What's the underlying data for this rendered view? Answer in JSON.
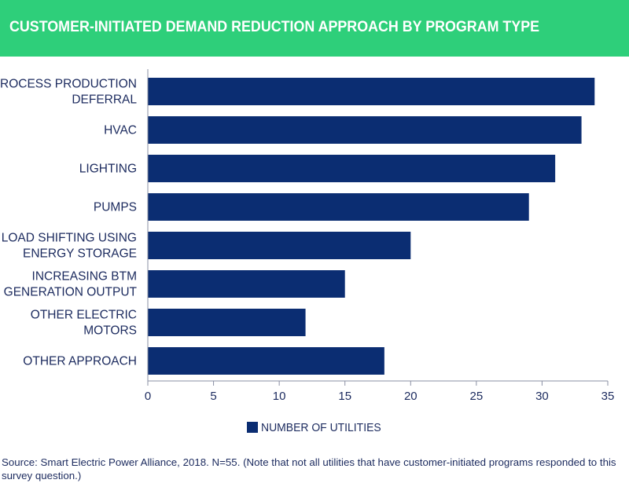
{
  "title": "CUSTOMER-INITIATED DEMAND REDUCTION APPROACH BY PROGRAM TYPE",
  "source": "Source: Smart Electric Power Alliance, 2018. N=55. (Note that not all utilities that have customer-initiated programs responded to this survey question.)",
  "colors": {
    "header": "#2ecf7a",
    "bar": "#0b2d72",
    "text": "#1b2a5e"
  },
  "chart_data": {
    "type": "bar",
    "orientation": "horizontal",
    "categories": [
      [
        "PROCESS PRODUCTION",
        "DEFERRAL"
      ],
      [
        "HVAC"
      ],
      [
        "LIGHTING"
      ],
      [
        "PUMPS"
      ],
      [
        "LOAD SHIFTING USING",
        "ENERGY STORAGE"
      ],
      [
        "INCREASING BTM",
        "GENERATION OUTPUT"
      ],
      [
        "OTHER ELECTRIC",
        "MOTORS"
      ],
      [
        "OTHER APPROACH"
      ]
    ],
    "series": [
      {
        "name": "NUMBER OF UTILITIES",
        "values": [
          34,
          33,
          31,
          29,
          20,
          15,
          12,
          18
        ]
      }
    ],
    "xlim": [
      0,
      35
    ],
    "xticks": [
      "0",
      "5",
      "10",
      "15",
      "20",
      "25",
      "30",
      "35"
    ],
    "grid": false,
    "legend": "bottom-center"
  }
}
